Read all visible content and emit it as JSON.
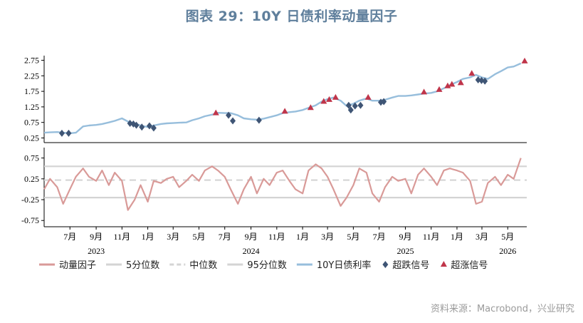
{
  "title": "图表 29：10Y 日债利率动量因子",
  "source": "资料来源：Macrobond，兴业研究",
  "chart_data": [
    {
      "type": "line",
      "panel": "top",
      "ylim": [
        0.1,
        2.9
      ],
      "y_ticks": [
        "2.75",
        "2.25",
        "1.75",
        "1.25",
        "0.75",
        "0.25"
      ],
      "y_tick_values": [
        2.75,
        2.25,
        1.75,
        1.25,
        0.75,
        0.25
      ],
      "grid": false,
      "x_domain": [
        "2023-05-01",
        "2026-06-15"
      ],
      "series": [
        {
          "name": "10Y日债利率",
          "color": "#97bedc",
          "x": [
            "2023-05-01",
            "2023-05-15",
            "2023-06-01",
            "2023-06-15",
            "2023-07-01",
            "2023-07-15",
            "2023-08-01",
            "2023-08-15",
            "2023-09-01",
            "2023-09-15",
            "2023-10-01",
            "2023-10-15",
            "2023-11-01",
            "2023-11-15",
            "2023-12-01",
            "2023-12-15",
            "2024-01-01",
            "2024-01-15",
            "2024-02-01",
            "2024-02-15",
            "2024-03-01",
            "2024-03-15",
            "2024-04-01",
            "2024-04-15",
            "2024-05-01",
            "2024-05-15",
            "2024-06-01",
            "2024-06-15",
            "2024-07-01",
            "2024-07-15",
            "2024-08-01",
            "2024-08-15",
            "2024-09-01",
            "2024-09-15",
            "2024-10-01",
            "2024-10-15",
            "2024-11-01",
            "2024-11-15",
            "2024-12-01",
            "2024-12-15",
            "2025-01-01",
            "2025-01-15",
            "2025-02-01",
            "2025-02-15",
            "2025-03-01",
            "2025-03-15",
            "2025-04-01",
            "2025-04-15",
            "2025-05-01",
            "2025-05-15",
            "2025-06-01",
            "2025-06-15",
            "2025-07-01",
            "2025-07-15",
            "2025-08-01",
            "2025-08-15",
            "2025-09-01",
            "2025-09-15",
            "2025-10-01",
            "2025-10-15",
            "2025-11-01",
            "2025-11-15",
            "2025-12-01",
            "2025-12-15",
            "2026-01-01",
            "2026-01-15",
            "2026-02-01",
            "2026-02-15",
            "2026-03-01",
            "2026-03-15",
            "2026-04-01",
            "2026-04-15",
            "2026-05-01",
            "2026-05-15",
            "2026-06-01"
          ],
          "values": [
            0.42,
            0.43,
            0.44,
            0.42,
            0.4,
            0.42,
            0.62,
            0.65,
            0.67,
            0.7,
            0.75,
            0.8,
            0.88,
            0.78,
            0.72,
            0.65,
            0.6,
            0.65,
            0.7,
            0.72,
            0.73,
            0.74,
            0.75,
            0.82,
            0.88,
            0.95,
            1.0,
            1.06,
            1.05,
            1.05,
            0.98,
            0.88,
            0.85,
            0.84,
            0.87,
            0.92,
            0.98,
            1.05,
            1.08,
            1.1,
            1.15,
            1.22,
            1.3,
            1.42,
            1.5,
            1.55,
            1.45,
            1.28,
            1.35,
            1.45,
            1.52,
            1.45,
            1.45,
            1.48,
            1.55,
            1.6,
            1.6,
            1.62,
            1.65,
            1.68,
            1.7,
            1.75,
            1.85,
            1.95,
            2.05,
            2.15,
            2.2,
            2.28,
            2.2,
            2.15,
            2.3,
            2.4,
            2.52,
            2.55,
            2.65
          ]
        }
      ],
      "markers": [
        {
          "name": "超跌信号",
          "shape": "diamond",
          "color": "#3f5575",
          "x": [
            "2023-06-12",
            "2023-06-28",
            "2023-11-20",
            "2023-11-28",
            "2023-12-05",
            "2023-12-18",
            "2024-01-05",
            "2024-01-15",
            "2024-07-10",
            "2024-07-20",
            "2024-09-20",
            "2025-04-20",
            "2025-04-25",
            "2025-05-05",
            "2025-05-18",
            "2025-07-05",
            "2025-07-12",
            "2026-02-20",
            "2026-02-28",
            "2026-03-08"
          ],
          "y": [
            0.4,
            0.4,
            0.72,
            0.7,
            0.66,
            0.6,
            0.64,
            0.57,
            0.98,
            0.8,
            0.82,
            1.3,
            1.15,
            1.28,
            1.3,
            1.4,
            1.42,
            2.12,
            2.1,
            2.08
          ]
        },
        {
          "name": "超涨信号",
          "shape": "triangle",
          "color": "#c0354a",
          "x": [
            "2024-06-10",
            "2024-11-20",
            "2025-01-20",
            "2025-02-20",
            "2025-03-05",
            "2025-03-20",
            "2025-06-05",
            "2025-10-15",
            "2025-11-20",
            "2025-12-10",
            "2025-12-20",
            "2026-01-10",
            "2026-02-05",
            "2026-06-10"
          ],
          "y": [
            1.05,
            1.1,
            1.22,
            1.42,
            1.48,
            1.55,
            1.55,
            1.72,
            1.8,
            1.92,
            1.97,
            2.02,
            2.32,
            2.72
          ]
        }
      ]
    },
    {
      "type": "line",
      "panel": "bottom",
      "ylim": [
        -0.9,
        1.0
      ],
      "y_ticks": [
        "0.75",
        "0.25",
        "-0.25",
        "-0.75"
      ],
      "y_tick_values": [
        0.75,
        0.25,
        -0.25,
        -0.75
      ],
      "x_ticks": [
        "7月",
        "9月",
        "11月",
        "1月",
        "3月",
        "5月",
        "7月",
        "9月",
        "11月",
        "1月",
        "3月",
        "5月",
        "7月",
        "9月",
        "11月",
        "1月",
        "3月",
        "5月"
      ],
      "x_tick_dates": [
        "2023-07-01",
        "2023-09-01",
        "2023-11-01",
        "2024-01-01",
        "2024-03-01",
        "2024-05-01",
        "2024-07-01",
        "2024-09-01",
        "2024-11-01",
        "2025-01-01",
        "2025-03-01",
        "2025-05-01",
        "2025-07-01",
        "2025-09-01",
        "2025-11-01",
        "2026-01-01",
        "2026-03-01",
        "2026-05-01"
      ],
      "year_labels": [
        "2023",
        "2024",
        "2025",
        "2026"
      ],
      "year_label_dates": [
        "2023-09-01",
        "2024-09-01",
        "2025-09-01",
        "2026-05-01"
      ],
      "reference_lines": [
        {
          "name": "5分位数",
          "value": -0.2,
          "style": "solid",
          "color": "#d4d4d4"
        },
        {
          "name": "中位数",
          "value": 0.22,
          "style": "dashed",
          "color": "#d4d4d4"
        },
        {
          "name": "95分位数",
          "value": 0.55,
          "style": "solid",
          "color": "#d4d4d4"
        }
      ],
      "series": [
        {
          "name": "动量因子",
          "color": "#d99a98",
          "x": [
            "2023-05-01",
            "2023-05-15",
            "2023-06-01",
            "2023-06-15",
            "2023-07-01",
            "2023-07-15",
            "2023-08-01",
            "2023-08-15",
            "2023-09-01",
            "2023-09-15",
            "2023-10-01",
            "2023-10-15",
            "2023-11-01",
            "2023-11-15",
            "2023-12-01",
            "2023-12-15",
            "2024-01-01",
            "2024-01-15",
            "2024-02-01",
            "2024-02-15",
            "2024-03-01",
            "2024-03-15",
            "2024-04-01",
            "2024-04-15",
            "2024-05-01",
            "2024-05-15",
            "2024-06-01",
            "2024-06-15",
            "2024-07-01",
            "2024-07-15",
            "2024-08-01",
            "2024-08-15",
            "2024-09-01",
            "2024-09-15",
            "2024-10-01",
            "2024-10-15",
            "2024-11-01",
            "2024-11-15",
            "2024-12-01",
            "2024-12-15",
            "2025-01-01",
            "2025-01-15",
            "2025-02-01",
            "2025-02-15",
            "2025-03-01",
            "2025-03-15",
            "2025-04-01",
            "2025-04-15",
            "2025-05-01",
            "2025-05-15",
            "2025-06-01",
            "2025-06-15",
            "2025-07-01",
            "2025-07-15",
            "2025-08-01",
            "2025-08-15",
            "2025-09-01",
            "2025-09-15",
            "2025-10-01",
            "2025-10-15",
            "2025-11-01",
            "2025-11-15",
            "2025-12-01",
            "2025-12-15",
            "2026-01-01",
            "2026-01-15",
            "2026-02-01",
            "2026-02-15",
            "2026-03-01",
            "2026-03-15",
            "2026-04-01",
            "2026-04-15",
            "2026-05-01",
            "2026-05-15",
            "2026-06-01"
          ],
          "values": [
            0.0,
            0.25,
            0.05,
            -0.35,
            0.0,
            0.3,
            0.5,
            0.3,
            0.2,
            0.45,
            0.1,
            0.4,
            0.2,
            -0.5,
            -0.25,
            0.1,
            -0.3,
            0.2,
            0.15,
            0.25,
            0.3,
            0.05,
            0.2,
            0.35,
            0.2,
            0.45,
            0.55,
            0.45,
            0.3,
            0.0,
            -0.35,
            0.0,
            0.3,
            -0.1,
            0.25,
            0.1,
            0.4,
            0.45,
            0.2,
            0.0,
            -0.1,
            0.45,
            0.6,
            0.5,
            0.3,
            0.0,
            -0.4,
            -0.2,
            0.1,
            0.5,
            0.4,
            -0.1,
            -0.3,
            0.05,
            0.3,
            0.2,
            0.25,
            -0.1,
            0.35,
            0.5,
            0.3,
            0.1,
            0.45,
            0.5,
            0.45,
            0.4,
            0.2,
            -0.35,
            -0.3,
            0.15,
            0.3,
            0.1,
            0.35,
            0.25,
            0.75
          ]
        }
      ]
    }
  ],
  "legend": [
    {
      "label": "动量因子",
      "kind": "line",
      "color": "#d99a98"
    },
    {
      "label": "5分位数",
      "kind": "line",
      "color": "#d4d4d4"
    },
    {
      "label": "中位数",
      "kind": "dash",
      "color": "#d4d4d4"
    },
    {
      "label": "95分位数",
      "kind": "line",
      "color": "#d4d4d4"
    },
    {
      "label": "10Y日债利率",
      "kind": "line",
      "color": "#97bedc"
    },
    {
      "label": "超跌信号",
      "kind": "diamond",
      "color": "#3f5575"
    },
    {
      "label": "超涨信号",
      "kind": "triangle",
      "color": "#c0354a"
    }
  ]
}
